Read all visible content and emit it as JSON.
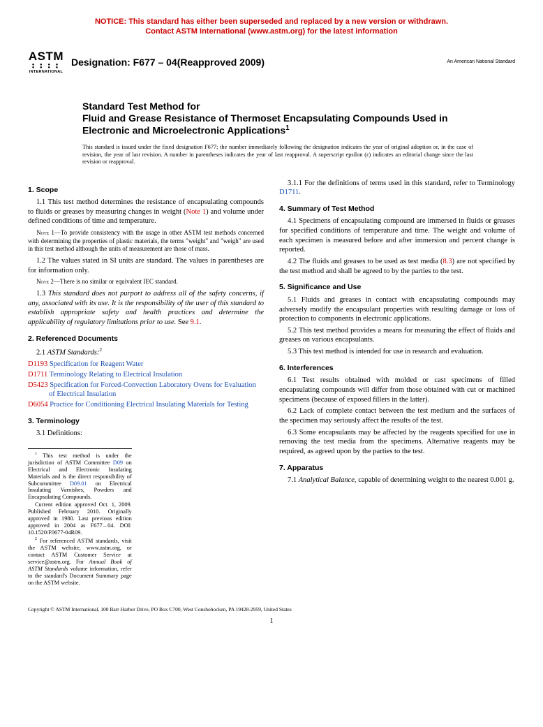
{
  "colors": {
    "notice": "#cc0000",
    "link": "#1a4fb3",
    "text": "#000000",
    "background": "#ffffff"
  },
  "notice": {
    "line1": "NOTICE: This standard has either been superseded and replaced by a new version or withdrawn.",
    "line2": "Contact ASTM International (www.astm.org) for the latest information"
  },
  "logo": {
    "top": "ASTM",
    "bottom": "INTERNATIONAL"
  },
  "designation_label": "Designation: ",
  "designation": "F677 – 04(Reapproved 2009)",
  "ans": "An American National Standard",
  "title": {
    "line1": "Standard Test Method for",
    "line2": "Fluid and Grease Resistance of Thermoset Encapsulating Compounds Used in Electronic and Microelectronic Applications",
    "sup": "1"
  },
  "issuance": "This standard is issued under the fixed designation F677; the number immediately following the designation indicates the year of original adoption or, in the case of revision, the year of last revision. A number in parentheses indicates the year of last reapproval. A superscript epsilon (ε) indicates an editorial change since the last revision or reapproval.",
  "s1": {
    "head": "1. Scope",
    "p1a": "1.1 This test method determines the resistance of encapsulating compounds to fluids or greases by measuring changes in weight (",
    "p1_link": "Note 1",
    "p1b": ") and volume under defined conditions of time and temperature.",
    "note1_label": "Note 1",
    "note1": "—To provide consistency with the usage in other ASTM test methods concerned with determining the properties of plastic materials, the terms \"weight\" and \"weigh\" are used in this test method although the units of measurement are those of mass.",
    "p2": "1.2 The values stated in SI units are standard. The values in parentheses are for information only.",
    "note2_label": "Note 2",
    "note2": "—There is no similar or equivalent IEC standard.",
    "p3a": "1.3 ",
    "p3_italic": "This standard does not purport to address all of the safety concerns, if any, associated with its use. It is the responsibility of the user of this standard to establish appropriate safety and health practices and determine the applicability of regulatory limitations prior to use.",
    "p3b": " See ",
    "p3_link": "9.1",
    "p3c": "."
  },
  "s2": {
    "head": "2. Referenced Documents",
    "p1": "2.1 ",
    "p1_italic": "ASTM Standards:",
    "sup": "2",
    "refs": [
      {
        "id": "D1193",
        "title": "Specification for Reagent Water"
      },
      {
        "id": "D1711",
        "title": "Terminology Relating to Electrical Insulation"
      },
      {
        "id": "D5423",
        "title": "Specification for Forced-Convection Laboratory Ovens for Evaluation of Electrical Insulation"
      },
      {
        "id": "D6054",
        "title": "Practice for Conditioning Electrical Insulating Materials for Testing"
      }
    ]
  },
  "s3": {
    "head": "3. Terminology",
    "p1": "3.1 Definitions:",
    "p2a": "3.1.1 For the definitions of terms used in this standard, refer to Terminology ",
    "p2_link": "D1711",
    "p2b": "."
  },
  "s4": {
    "head": "4. Summary of Test Method",
    "p1": "4.1 Specimens of encapsulating compound are immersed in fluids or greases for specified conditions of temperature and time. The weight and volume of each specimen is measured before and after immersion and percent change is reported.",
    "p2a": "4.2 The fluids and greases to be used as test media (",
    "p2_link": "8.3",
    "p2b": ") are not specified by the test method and shall be agreed to by the parties to the test."
  },
  "s5": {
    "head": "5. Significance and Use",
    "p1": "5.1 Fluids and greases in contact with encapsulating compounds may adversely modify the encapsulant properties with resulting damage or loss of protection to components in electronic applications.",
    "p2": "5.2 This test method provides a means for measuring the effect of fluids and greases on various encapsulants.",
    "p3": "5.3 This test method is intended for use in research and evaluation."
  },
  "s6": {
    "head": "6. Interferences",
    "p1": "6.1 Test results obtained with molded or cast specimens of filled encapsulating compounds will differ from those obtained with cut or machined specimens (because of exposed fillers in the latter).",
    "p2": "6.2 Lack of complete contact between the test medium and the surfaces of the specimen may seriously affect the results of the test.",
    "p3": "6.3 Some encapsulants may be affected by the reagents specified for use in removing the test media from the specimens. Alternative reagents may be required, as agreed upon by the parties to the test."
  },
  "s7": {
    "head": "7. Apparatus",
    "p1a": "7.1 ",
    "p1_italic": "Analytical Balance,",
    "p1b": " capable of determining weight to the nearest 0.001 g."
  },
  "footnotes": {
    "f1a": " This test method is under the jurisdiction of ASTM Committee ",
    "f1_link1": "D09",
    "f1b": " on Electrical and Electronic Insulating Materials and is the direct responsibility of Subcommittee ",
    "f1_link2": "D09.01",
    "f1c": " on Electrical Insulating Varnishes, Powders and Encapsulating Compounds.",
    "f1d": "Current edition approved Oct. 1, 2009. Published February 2010. Originally approved in 1980. Last previous edition approved in 2004 as F677 – 04. DOI: 10.1520/F0677-04R09.",
    "f2a": " For referenced ASTM standards, visit the ASTM website, www.astm.org, or contact ASTM Customer Service at service@astm.org. For ",
    "f2_italic": "Annual Book of ASTM Standards",
    "f2b": " volume information, refer to the standard's Document Summary page on the ASTM website."
  },
  "copyright": "Copyright © ASTM International, 100 Barr Harbor Drive, PO Box C700, West Conshohocken, PA 19428-2959, United States",
  "pagenum": "1"
}
